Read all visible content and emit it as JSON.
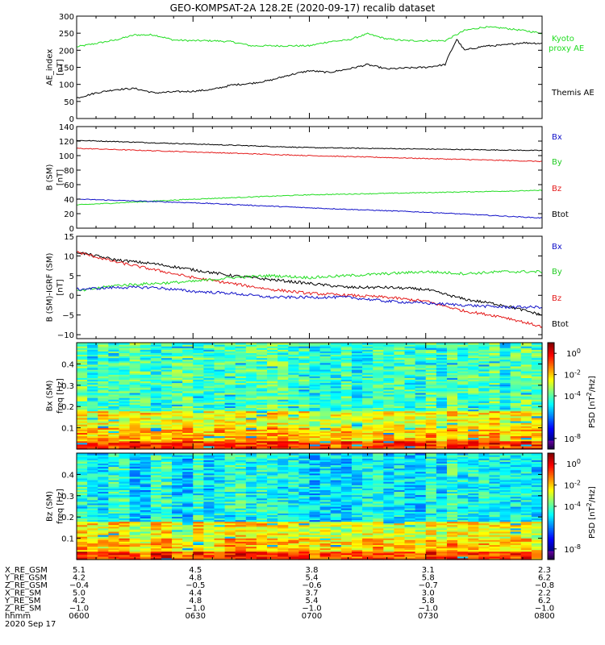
{
  "title": "GEO-KOMPSAT-2A 128.2E (2020-09-17) recalib dataset",
  "colors": {
    "black": "#000000",
    "red": "#e41a1a",
    "green": "#22dd22",
    "blue": "#1010c8",
    "bx_label": "#1010c8",
    "by_label": "#22cc22",
    "bz_label": "#e41a1a"
  },
  "chart_data": [
    {
      "type": "line",
      "panel": "ae",
      "ylabel_lines": [
        "AE_index",
        "[nT]"
      ],
      "ylim": [
        0,
        300
      ],
      "yticks": [
        0,
        50,
        100,
        150,
        200,
        250,
        300
      ],
      "xlim": [
        0,
        120
      ],
      "x_unit": "minutes after 06:00 UT",
      "legend": [
        "Kyoto",
        "proxy AE",
        "Themis AE"
      ],
      "series": [
        {
          "name": "Kyoto proxy AE",
          "color": "#22dd22",
          "x": [
            0,
            5,
            10,
            15,
            20,
            25,
            30,
            35,
            40,
            45,
            50,
            55,
            60,
            65,
            70,
            75,
            80,
            85,
            90,
            95,
            100,
            105,
            110,
            115,
            120
          ],
          "y": [
            210,
            220,
            230,
            245,
            245,
            230,
            228,
            228,
            225,
            213,
            213,
            213,
            213,
            225,
            230,
            248,
            233,
            228,
            228,
            228,
            258,
            268,
            265,
            258,
            250
          ]
        },
        {
          "name": "Themis AE",
          "color": "#000000",
          "x": [
            0,
            5,
            10,
            15,
            20,
            25,
            30,
            35,
            40,
            45,
            50,
            55,
            60,
            65,
            70,
            75,
            80,
            85,
            90,
            95,
            96,
            98,
            100,
            105,
            110,
            115,
            120
          ],
          "y": [
            60,
            75,
            85,
            88,
            75,
            78,
            80,
            85,
            98,
            103,
            112,
            128,
            140,
            135,
            145,
            158,
            145,
            148,
            150,
            158,
            185,
            232,
            200,
            212,
            215,
            222,
            220
          ]
        }
      ]
    },
    {
      "type": "line",
      "panel": "b_sm",
      "ylabel_lines": [
        "B (SM)",
        "[nT]"
      ],
      "ylim": [
        0,
        140
      ],
      "yticks": [
        0,
        20,
        40,
        60,
        80,
        100,
        120,
        140
      ],
      "xlim": [
        0,
        120
      ],
      "legend": [
        "Bx",
        "By",
        "Bz",
        "Btot"
      ],
      "series": [
        {
          "name": "Btot",
          "color": "#000000",
          "x": [
            0,
            30,
            60,
            90,
            120
          ],
          "y": [
            121,
            116,
            111,
            109,
            107
          ]
        },
        {
          "name": "Bz",
          "color": "#e41a1a",
          "x": [
            0,
            30,
            60,
            90,
            120
          ],
          "y": [
            110,
            105,
            100,
            96,
            92
          ]
        },
        {
          "name": "By",
          "color": "#22dd22",
          "x": [
            0,
            30,
            60,
            90,
            120
          ],
          "y": [
            32,
            40,
            46,
            49,
            52
          ]
        },
        {
          "name": "Bx",
          "color": "#1010c8",
          "x": [
            0,
            30,
            60,
            90,
            120
          ],
          "y": [
            40,
            35,
            28,
            22,
            14
          ]
        }
      ]
    },
    {
      "type": "line",
      "panel": "b_sm_minus_igrf",
      "ylabel_lines": [
        "B (SM)-IGRF (SM)",
        "[nT]"
      ],
      "ylim": [
        -11,
        15
      ],
      "yticks": [
        -10,
        -5,
        0,
        5,
        10,
        15
      ],
      "xlim": [
        0,
        120
      ],
      "legend": [
        "Bx",
        "By",
        "Bz",
        "Btot"
      ],
      "series": [
        {
          "name": "Btot",
          "color": "#000000",
          "x": [
            0,
            10,
            20,
            30,
            40,
            50,
            60,
            70,
            80,
            90,
            100,
            110,
            120
          ],
          "y": [
            11,
            9,
            8,
            6.5,
            5,
            4,
            3,
            2,
            2,
            1.5,
            -1,
            -2.5,
            -5
          ]
        },
        {
          "name": "Bz",
          "color": "#e41a1a",
          "x": [
            0,
            10,
            20,
            30,
            40,
            50,
            60,
            70,
            80,
            90,
            100,
            110,
            120
          ],
          "y": [
            11,
            8.5,
            6.5,
            4.5,
            3,
            1.5,
            0.5,
            0,
            -0.5,
            -1.5,
            -4,
            -5.5,
            -8
          ]
        },
        {
          "name": "By",
          "color": "#22dd22",
          "x": [
            0,
            10,
            20,
            30,
            40,
            50,
            60,
            70,
            80,
            90,
            100,
            110,
            120
          ],
          "y": [
            1,
            2.5,
            3,
            3.5,
            4.5,
            5,
            4.5,
            5,
            5.5,
            6,
            5.5,
            6,
            6
          ]
        },
        {
          "name": "Bx",
          "color": "#1010c8",
          "x": [
            0,
            10,
            20,
            30,
            40,
            50,
            60,
            70,
            80,
            90,
            100,
            110,
            120
          ],
          "y": [
            1.5,
            2,
            2,
            1,
            0.5,
            -0.5,
            -0.5,
            -0.5,
            -1.5,
            -2,
            -2.5,
            -3,
            -3
          ]
        }
      ]
    },
    {
      "type": "heatmap",
      "panel": "bx_spectrogram",
      "ylabel_lines": [
        "Bx (SM)",
        "freq [Hz]"
      ],
      "ylim": [
        0,
        0.5
      ],
      "yticks": [
        0.1,
        0.2,
        0.3,
        0.4
      ],
      "colorbar": {
        "label": "PSD [nT^2/Hz]",
        "log_range": [
          -9,
          1
        ],
        "ticks": [
          "10^0",
          "10^-2",
          "10^-4",
          "10^-8"
        ],
        "tick_exponents": [
          0,
          -2,
          -4,
          -8
        ]
      }
    },
    {
      "type": "heatmap",
      "panel": "bz_spectrogram",
      "ylabel_lines": [
        "Bz (SM)",
        "freq [Hz]"
      ],
      "ylim": [
        0,
        0.5
      ],
      "yticks": [
        0.1,
        0.2,
        0.3,
        0.4
      ],
      "colorbar": {
        "label": "PSD [nT^2/Hz]",
        "log_range": [
          -9,
          1
        ],
        "ticks": [
          "10^0",
          "10^-2",
          "10^-4",
          "10^-8"
        ],
        "tick_exponents": [
          0,
          -2,
          -4,
          -8
        ]
      }
    }
  ],
  "ephemeris": {
    "rows": [
      {
        "label": "X_RE_GSM",
        "values": [
          "5.1",
          "4.5",
          "3.8",
          "3.1",
          "2.3"
        ]
      },
      {
        "label": "Y_RE_GSM",
        "values": [
          "4.2",
          "4.8",
          "5.4",
          "5.8",
          "6.2"
        ]
      },
      {
        "label": "Z_RE_GSM",
        "values": [
          "−0.4",
          "−0.5",
          "−0.6",
          "−0.7",
          "−0.8"
        ]
      },
      {
        "label": "X_RE_SM",
        "values": [
          "5.0",
          "4.4",
          "3.7",
          "3.0",
          "2.2"
        ]
      },
      {
        "label": "Y_RE_SM",
        "values": [
          "4.2",
          "4.8",
          "5.4",
          "5.8",
          "6.2"
        ]
      },
      {
        "label": "Z_RE_SM",
        "values": [
          "−1.0",
          "−1.0",
          "−1.0",
          "−1.0",
          "−1.0"
        ]
      },
      {
        "label": "hhmm",
        "values": [
          "0600",
          "0630",
          "0700",
          "0730",
          "0800"
        ]
      }
    ],
    "date": "2020 Sep 17"
  }
}
